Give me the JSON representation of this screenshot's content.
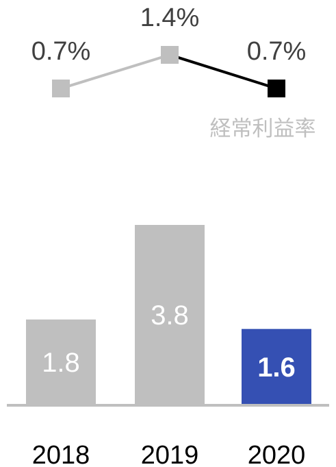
{
  "chart_data": [
    {
      "type": "line",
      "categories": [
        "2018",
        "2019",
        "2020"
      ],
      "series": [
        {
          "name": "経常利益率",
          "values": [
            0.7,
            1.4,
            0.7
          ],
          "labels": [
            "0.7%",
            "1.4%",
            "0.7%"
          ]
        }
      ],
      "colors": {
        "base": "#bfbfbf",
        "highlight": "#000000"
      },
      "highlight_index": 2,
      "grid": false,
      "legend": "inline-right"
    },
    {
      "type": "bar",
      "categories": [
        "2018",
        "2019",
        "2020"
      ],
      "values": [
        1.8,
        3.8,
        1.6
      ],
      "labels": [
        "1.8",
        "3.8",
        "1.6"
      ],
      "colors": {
        "base": "#bfbfbf",
        "highlight": "#3550b3",
        "axis": "#bfbfbf"
      },
      "highlight_index": 2,
      "ylim": [
        0,
        3.8
      ],
      "grid": false
    }
  ]
}
